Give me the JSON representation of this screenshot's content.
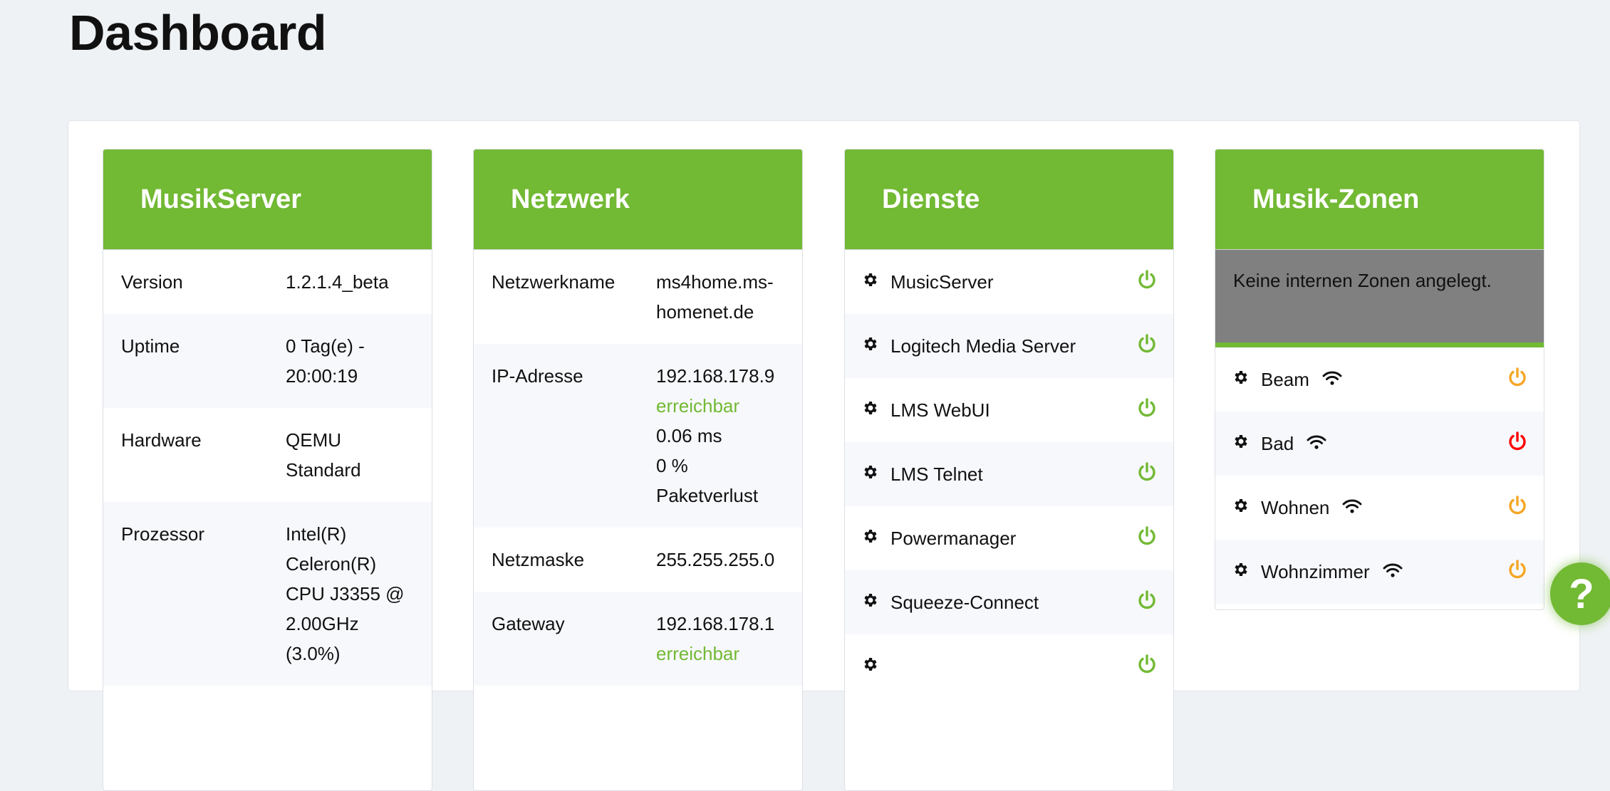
{
  "page_title": "Dashboard",
  "colors": {
    "accent": "#72b934",
    "power_on": "#72b934",
    "power_standby": "#f5a623",
    "power_off": "#ff0000",
    "notice_bg": "#808080"
  },
  "musikserver": {
    "title": "MusikServer",
    "rows": [
      {
        "label": "Version",
        "lines": [
          "1.2.1.4_beta"
        ]
      },
      {
        "label": "Uptime",
        "lines": [
          "0 Tag(e) - 20:00:19"
        ]
      },
      {
        "label": "Hardware",
        "lines": [
          "QEMU Standard"
        ]
      },
      {
        "label": "Prozessor",
        "lines": [
          "Intel(R) Celeron(R) CPU J3355 @ 2.00GHz (3.0%)"
        ]
      }
    ]
  },
  "netzwerk": {
    "title": "Netzwerk",
    "rows": [
      {
        "label": "Netzwerkname",
        "lines": [
          "ms4home.ms-homenet.de"
        ]
      },
      {
        "label": "IP-Adresse",
        "lines": [
          "192.168.178.9"
        ],
        "status": "erreichbar",
        "extra": [
          "0.06 ms",
          "0 % Paketverlust"
        ]
      },
      {
        "label": "Netzmaske",
        "lines": [
          "255.255.255.0"
        ]
      },
      {
        "label": "Gateway",
        "lines": [
          "192.168.178.1"
        ],
        "status": "erreichbar"
      }
    ]
  },
  "dienste": {
    "title": "Dienste",
    "items": [
      {
        "name": "MusicServer",
        "state": "on"
      },
      {
        "name": "Logitech Media Server",
        "state": "on"
      },
      {
        "name": "LMS WebUI",
        "state": "on"
      },
      {
        "name": "LMS Telnet",
        "state": "on"
      },
      {
        "name": "Powermanager",
        "state": "on"
      },
      {
        "name": "Squeeze-Connect",
        "state": "on"
      },
      {
        "name": "",
        "state": "on"
      }
    ]
  },
  "zonen": {
    "title": "Musik-Zonen",
    "notice": "Keine internen Zonen angelegt.",
    "items": [
      {
        "name": "Beam",
        "state": "standby"
      },
      {
        "name": "Bad",
        "state": "off"
      },
      {
        "name": "Wohnen",
        "state": "standby"
      },
      {
        "name": "Wohnzimmer",
        "state": "standby"
      }
    ]
  },
  "help_label": "?"
}
